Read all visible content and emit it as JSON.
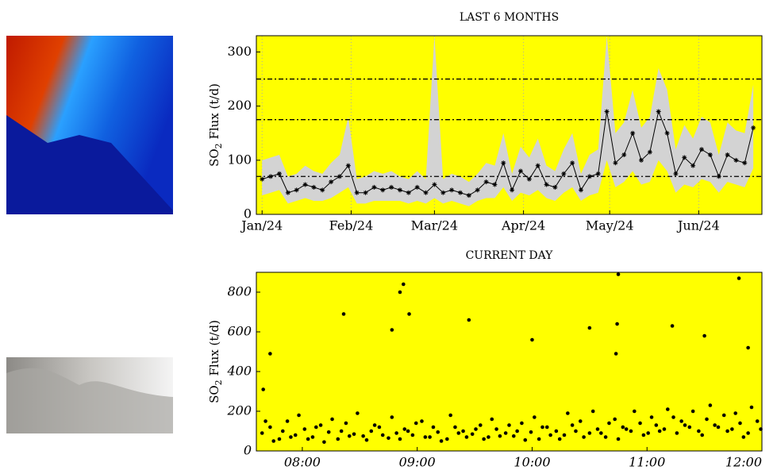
{
  "chart_data": [
    {
      "type": "line",
      "title": "LAST 6 MONTHS",
      "y_label": {
        "prefix": "SO",
        "sub": "2",
        "suffix": " Flux (t/d)"
      },
      "x": [
        0,
        3,
        6,
        9,
        12,
        15,
        18,
        21,
        24,
        27,
        30,
        33,
        36,
        39,
        42,
        45,
        48,
        51,
        54,
        57,
        60,
        63,
        66,
        69,
        72,
        75,
        78,
        81,
        84,
        87,
        90,
        93,
        96,
        99,
        102,
        105,
        108,
        111,
        114,
        117,
        120,
        123,
        126,
        129,
        132,
        135,
        138,
        141,
        144,
        147,
        150,
        153,
        156,
        159,
        162,
        165,
        168,
        171
      ],
      "values": [
        65,
        70,
        75,
        40,
        45,
        55,
        50,
        45,
        60,
        70,
        90,
        40,
        40,
        50,
        45,
        50,
        45,
        40,
        50,
        40,
        55,
        40,
        45,
        40,
        35,
        45,
        60,
        55,
        95,
        45,
        80,
        65,
        90,
        55,
        50,
        75,
        95,
        45,
        70,
        75,
        190,
        95,
        110,
        150,
        100,
        115,
        190,
        150,
        75,
        105,
        90,
        120,
        110,
        70,
        110,
        100,
        95,
        160
      ],
      "band_low": [
        35,
        40,
        45,
        20,
        25,
        30,
        25,
        25,
        30,
        40,
        50,
        20,
        20,
        25,
        25,
        25,
        25,
        20,
        25,
        20,
        30,
        20,
        25,
        20,
        15,
        25,
        30,
        30,
        50,
        25,
        40,
        35,
        45,
        30,
        25,
        40,
        50,
        25,
        35,
        40,
        100,
        50,
        60,
        80,
        55,
        60,
        100,
        80,
        40,
        55,
        50,
        65,
        60,
        40,
        60,
        55,
        50,
        85
      ],
      "band_high": [
        100,
        105,
        110,
        70,
        75,
        90,
        80,
        75,
        95,
        110,
        180,
        65,
        70,
        80,
        75,
        80,
        70,
        65,
        80,
        65,
        330,
        65,
        75,
        70,
        60,
        75,
        95,
        90,
        150,
        75,
        125,
        105,
        140,
        90,
        80,
        120,
        150,
        75,
        110,
        120,
        330,
        150,
        170,
        230,
        160,
        180,
        270,
        230,
        120,
        165,
        140,
        180,
        170,
        110,
        170,
        155,
        150,
        240
      ],
      "reference_lines": [
        70,
        175,
        250
      ],
      "xlim": [
        -2,
        174
      ],
      "xticks": [
        {
          "value": 0,
          "label": "Jan/24"
        },
        {
          "value": 31,
          "label": "Feb/24"
        },
        {
          "value": 60,
          "label": "Mar/24"
        },
        {
          "value": 91,
          "label": "Apr/24"
        },
        {
          "value": 121,
          "label": "May/24"
        },
        {
          "value": 152,
          "label": "Jun/24"
        }
      ],
      "ylim": [
        0,
        330
      ],
      "yticks": [
        0,
        100,
        200,
        300
      ],
      "grid": "x",
      "color": "#000000",
      "band_color": "#d3d3d3",
      "background": "#ffff00"
    },
    {
      "type": "scatter",
      "title": "CURRENT DAY",
      "y_label": {
        "prefix": "SO",
        "sub": "2",
        "suffix": " Flux (t/d)"
      },
      "x": [
        7.65,
        7.72,
        7.8,
        7.87,
        7.94,
        8.02,
        8.09,
        8.16,
        8.23,
        8.31,
        8.38,
        8.45,
        8.53,
        8.6,
        8.67,
        8.75,
        8.82,
        8.89,
        8.96,
        9.04,
        9.11,
        9.18,
        9.26,
        9.33,
        9.4,
        9.48,
        9.55,
        9.62,
        9.69,
        9.77,
        9.84,
        9.91,
        9.99,
        10.06,
        10.13,
        10.21,
        10.28,
        10.35,
        10.42,
        10.5,
        10.57,
        10.64,
        10.72,
        10.79,
        10.86,
        10.94,
        11.01,
        11.08,
        11.15,
        11.23,
        11.3,
        11.37,
        11.45,
        11.52,
        11.59,
        11.67,
        11.74,
        11.81,
        11.88,
        11.96,
        7.68,
        7.75,
        7.83,
        7.9,
        7.97,
        8.05,
        8.12,
        8.19,
        8.26,
        8.34,
        8.41,
        8.48,
        8.56,
        8.63,
        8.7,
        8.78,
        8.85,
        8.92,
        8.99,
        9.07,
        9.14,
        9.21,
        9.29,
        9.36,
        9.43,
        9.51,
        9.58,
        9.65,
        9.72,
        9.8,
        9.87,
        9.94,
        10.02,
        10.09,
        10.16,
        10.24,
        10.31,
        10.38,
        10.45,
        10.53,
        10.6,
        10.67,
        10.75,
        10.82,
        10.89,
        10.97,
        11.04,
        11.11,
        11.18,
        11.26,
        11.33,
        11.4,
        11.48,
        11.55,
        11.62,
        11.7,
        11.77,
        11.84,
        11.91,
        11.99,
        7.66,
        7.72,
        8.36,
        8.78,
        8.85,
        8.88,
        8.93,
        9.45,
        10.0,
        10.5,
        10.75,
        10.74,
        10.73,
        11.22,
        11.5,
        11.8,
        11.88
      ],
      "values": [
        90,
        120,
        60,
        150,
        80,
        110,
        70,
        130,
        95,
        60,
        140,
        85,
        75,
        100,
        120,
        65,
        90,
        110,
        80,
        150,
        70,
        95,
        60,
        120,
        100,
        85,
        130,
        70,
        110,
        90,
        75,
        140,
        95,
        60,
        120,
        100,
        80,
        130,
        150,
        90,
        110,
        70,
        160,
        120,
        100,
        140,
        90,
        130,
        110,
        170,
        150,
        120,
        100,
        160,
        130,
        180,
        110,
        140,
        90,
        150,
        150,
        50,
        100,
        70,
        180,
        60,
        120,
        45,
        160,
        100,
        75,
        190,
        55,
        130,
        80,
        170,
        60,
        100,
        140,
        70,
        120,
        50,
        180,
        90,
        70,
        110,
        60,
        160,
        75,
        130,
        100,
        55,
        170,
        120,
        80,
        60,
        190,
        100,
        70,
        200,
        90,
        140,
        60,
        110,
        200,
        80,
        170,
        100,
        210,
        90,
        130,
        200,
        80,
        230,
        120,
        100,
        190,
        70,
        220,
        110,
        310,
        490,
        690,
        610,
        800,
        840,
        690,
        660,
        560,
        620,
        890,
        640,
        490,
        630,
        580,
        870,
        520
      ],
      "xlim": [
        7.6,
        12.0
      ],
      "xticks": [
        {
          "value": 8,
          "label": "08:00"
        },
        {
          "value": 9,
          "label": "09:00"
        },
        {
          "value": 10,
          "label": "10:00"
        },
        {
          "value": 11,
          "label": "11:00"
        },
        {
          "value": 12,
          "label": "12:00"
        }
      ],
      "ylim": [
        0,
        900
      ],
      "yticks": [
        0,
        200,
        400,
        600,
        800
      ],
      "color": "#000000",
      "background": "#ffff00"
    }
  ]
}
